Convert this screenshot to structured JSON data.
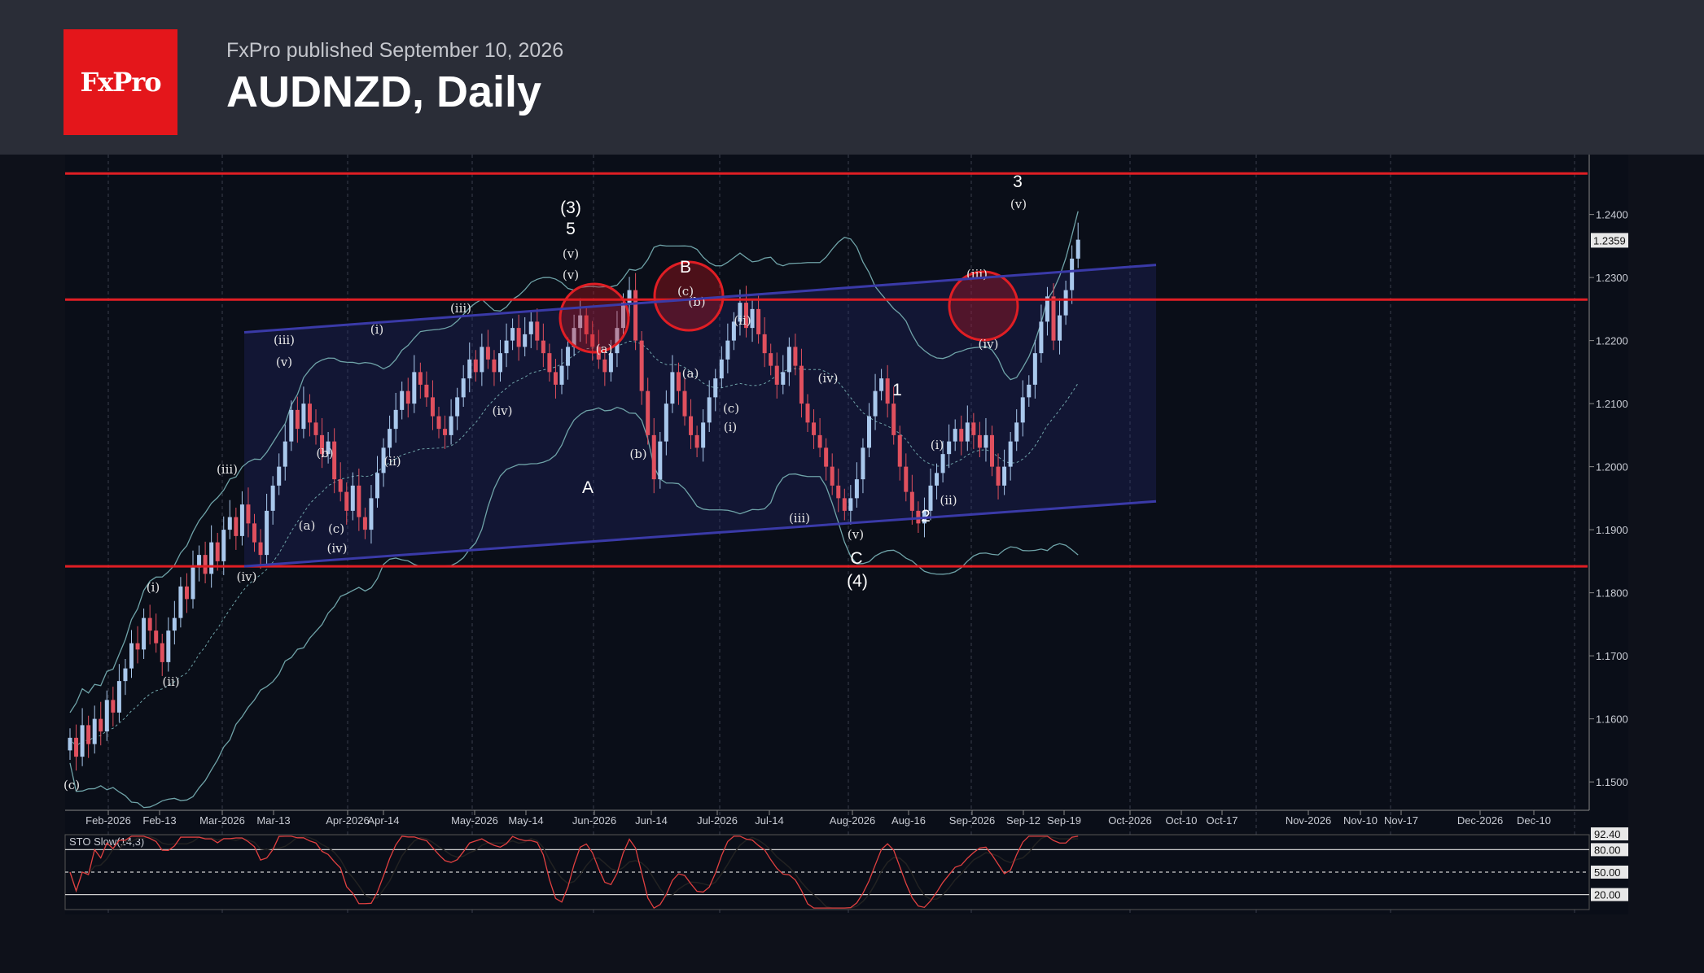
{
  "header": {
    "logo_text": "FxPro",
    "byline": "FxPro published September 10, 2026",
    "title": "AUDNZD, Daily"
  },
  "colors": {
    "background": "#0e111a",
    "header": "#2a2d37",
    "logo": "#e4161b",
    "up_candle": "#a9c8ec",
    "down_candle": "#e0505e",
    "level_line": "#e01e24",
    "channel": "#3a3aa8",
    "bollinger": "#6fa3a8",
    "stoch_k": "#e04040",
    "stoch_d": "#222222"
  },
  "chart_data": {
    "type": "candlestick",
    "symbol": "AUDNZD",
    "timeframe": "Daily",
    "title": "",
    "xlabel": "",
    "ylabel": "",
    "ylim": [
      1.1455,
      1.2495
    ],
    "y_ticks": [
      1.15,
      1.16,
      1.17,
      1.18,
      1.19,
      1.2,
      1.21,
      1.22,
      1.23,
      1.24
    ],
    "y_tick_labels": [
      "1.1500",
      "1.1600",
      "1.1700",
      "1.1800",
      "1.1900",
      "1.2000",
      "1.2100",
      "1.2200",
      "1.2300",
      "1.2400"
    ],
    "last_price_label": "1.2359",
    "x_labels": [
      "Feb-2026",
      "Feb-13",
      "Mar-2026",
      "Mar-13",
      "Apr-2026",
      "Apr-14",
      "May-2026",
      "May-14",
      "Jun-2026",
      "Jun-14",
      "Jul-2026",
      "Jul-14",
      "Aug-2026",
      "Aug-16",
      "Sep-2026",
      "Sep-12",
      "Sep-19",
      "Oct-2026",
      "Oct-10",
      "Oct-17",
      "Nov-2026",
      "Nov-10",
      "Nov-17",
      "Dec-2026",
      "Dec-10"
    ],
    "closes": [
      1.157,
      1.154,
      1.159,
      1.156,
      1.16,
      1.158,
      1.163,
      1.161,
      1.166,
      1.168,
      1.172,
      1.171,
      1.176,
      1.174,
      1.172,
      1.169,
      1.174,
      1.176,
      1.181,
      1.179,
      1.184,
      1.186,
      1.183,
      1.188,
      1.185,
      1.19,
      1.192,
      1.189,
      1.194,
      1.191,
      1.188,
      1.186,
      1.193,
      1.197,
      1.2,
      1.204,
      1.209,
      1.206,
      1.21,
      1.207,
      1.205,
      1.202,
      1.204,
      1.198,
      1.196,
      1.193,
      1.197,
      1.192,
      1.19,
      1.195,
      1.199,
      1.203,
      1.206,
      1.209,
      1.212,
      1.21,
      1.215,
      1.213,
      1.211,
      1.208,
      1.206,
      1.205,
      1.208,
      1.211,
      1.214,
      1.217,
      1.215,
      1.219,
      1.217,
      1.215,
      1.218,
      1.22,
      1.222,
      1.219,
      1.221,
      1.223,
      1.22,
      1.218,
      1.215,
      1.213,
      1.216,
      1.219,
      1.222,
      1.224,
      1.221,
      1.219,
      1.217,
      1.215,
      1.218,
      1.222,
      1.226,
      1.228,
      1.22,
      1.212,
      1.205,
      1.198,
      1.204,
      1.21,
      1.215,
      1.212,
      1.208,
      1.205,
      1.203,
      1.207,
      1.211,
      1.214,
      1.217,
      1.22,
      1.223,
      1.226,
      1.222,
      1.225,
      1.221,
      1.218,
      1.216,
      1.213,
      1.215,
      1.219,
      1.216,
      1.21,
      1.207,
      1.205,
      1.203,
      1.2,
      1.197,
      1.195,
      1.193,
      1.195,
      1.198,
      1.203,
      1.208,
      1.212,
      1.214,
      1.21,
      1.205,
      1.2,
      1.196,
      1.193,
      1.191,
      1.193,
      1.197,
      1.199,
      1.202,
      1.204,
      1.206,
      1.204,
      1.207,
      1.205,
      1.203,
      1.205,
      1.2,
      1.197,
      1.2,
      1.204,
      1.207,
      1.211,
      1.213,
      1.218,
      1.223,
      1.227,
      1.22,
      1.224,
      1.228,
      1.233,
      1.236
    ],
    "levels": [
      1.2465,
      1.2265,
      1.1842
    ],
    "channel_upper": [
      [
        1.2213,
        1.232
      ]
    ],
    "channel_lower": [
      [
        1.1842,
        1.1945
      ]
    ],
    "annotations": [
      "(c)",
      "(ii)",
      "(i)",
      "(iii)",
      "(iv)",
      "(iii)",
      "(v)",
      "(a)",
      "(b)",
      "(c)",
      "(iv)",
      "(i)",
      "(ii)",
      "(iii)",
      "(iv)",
      "(3)",
      "5",
      "(v)",
      "(v)",
      "A",
      "(a)",
      "(b)",
      "B",
      "(c)",
      "(b)",
      "(a)",
      "(ii)",
      "(c)",
      "(i)",
      "(iii)",
      "(iv)",
      "(v)",
      "C",
      "(4)",
      "1",
      "(i)",
      "2",
      "(ii)",
      "(iii)",
      "(iv)",
      "3",
      "(v)"
    ],
    "stochastic": {
      "label": "STO Slow(14,3)",
      "levels": [
        "80.00",
        "50.00",
        "20.00"
      ],
      "current_label": "92.40",
      "ylim": [
        0,
        100
      ]
    }
  }
}
